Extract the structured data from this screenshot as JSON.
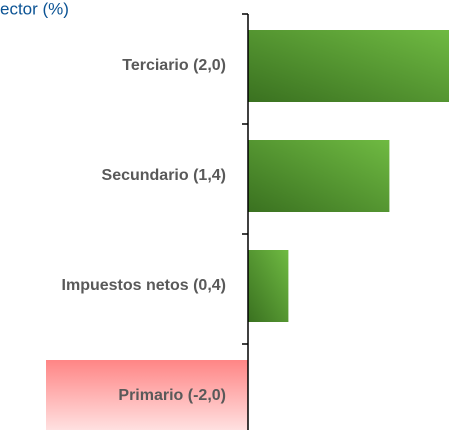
{
  "chart_data": {
    "type": "barh",
    "title": "ector (%)",
    "categories": [
      "Terciario (2,0)",
      "Secundario (1,4)",
      "Impuestos netos (0,4)",
      "Primario (-2,0)"
    ],
    "values": [
      2.0,
      1.4,
      0.4,
      -2.0
    ],
    "positive_color": [
      "#3a7120",
      "#6fba42"
    ],
    "negative_color": [
      "#ff8585",
      "#ffe3e3"
    ],
    "xlim": [
      -2.0,
      2.0
    ]
  }
}
